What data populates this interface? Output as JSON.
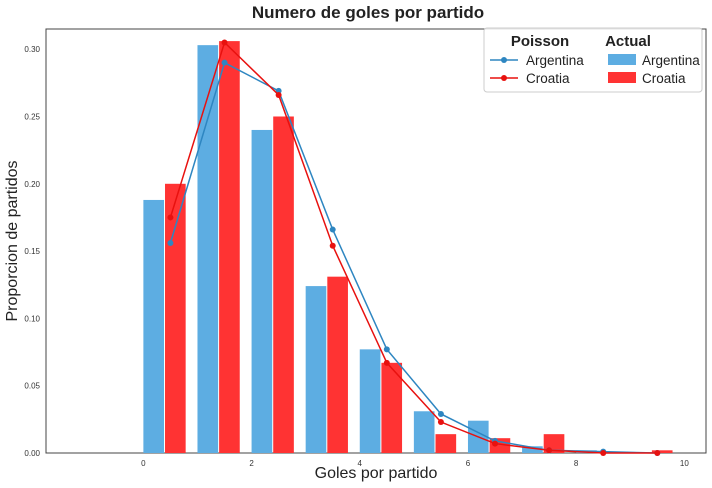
{
  "chart_data": {
    "type": "bar",
    "title": "Numero de goles por partido",
    "xlabel": "Goles por partido",
    "ylabel": "Proporcion de partidos",
    "xlim": [
      -1.8,
      10.4
    ],
    "ylim": [
      0,
      0.315
    ],
    "xticks": [
      "0",
      "2",
      "4",
      "6",
      "8",
      "10"
    ],
    "yticks": [
      "0.00",
      "0.05",
      "0.10",
      "0.15",
      "0.20",
      "0.25",
      "0.30"
    ],
    "grid": false,
    "legend_position": "top-right",
    "legend": {
      "poisson_header": "Poisson",
      "actual_header": "Actual",
      "poisson_entries": [
        "Argentina",
        "Croatia"
      ],
      "actual_entries": [
        "Argentina",
        "Croatia"
      ]
    },
    "bars": [
      {
        "name": "Argentina",
        "color": "#5DADE2",
        "x": [
          0,
          1,
          2,
          3,
          4,
          5,
          6,
          7,
          8,
          9
        ],
        "values": [
          0.188,
          0.303,
          0.24,
          0.124,
          0.077,
          0.031,
          0.024,
          0.005,
          0.002,
          0.0
        ]
      },
      {
        "name": "Croatia",
        "color": "#FF3333",
        "x": [
          0,
          1,
          2,
          3,
          4,
          5,
          6,
          7,
          8,
          9
        ],
        "values": [
          0.2,
          0.306,
          0.25,
          0.131,
          0.067,
          0.014,
          0.011,
          0.014,
          0.0,
          0.002
        ]
      }
    ],
    "lines": [
      {
        "name": "Argentina",
        "color": "#2E86C1",
        "x": [
          0.5,
          1.5,
          2.5,
          3.5,
          4.5,
          5.5,
          6.5,
          7.5,
          8.5,
          9.5
        ],
        "values": [
          0.156,
          0.29,
          0.269,
          0.166,
          0.077,
          0.029,
          0.009,
          0.002,
          0.001,
          0.0
        ]
      },
      {
        "name": "Croatia",
        "color": "#E8110F",
        "x": [
          0.5,
          1.5,
          2.5,
          3.5,
          4.5,
          5.5,
          6.5,
          7.5,
          8.5,
          9.5
        ],
        "values": [
          0.175,
          0.305,
          0.266,
          0.154,
          0.067,
          0.023,
          0.007,
          0.002,
          0.0,
          0.0
        ]
      }
    ]
  }
}
